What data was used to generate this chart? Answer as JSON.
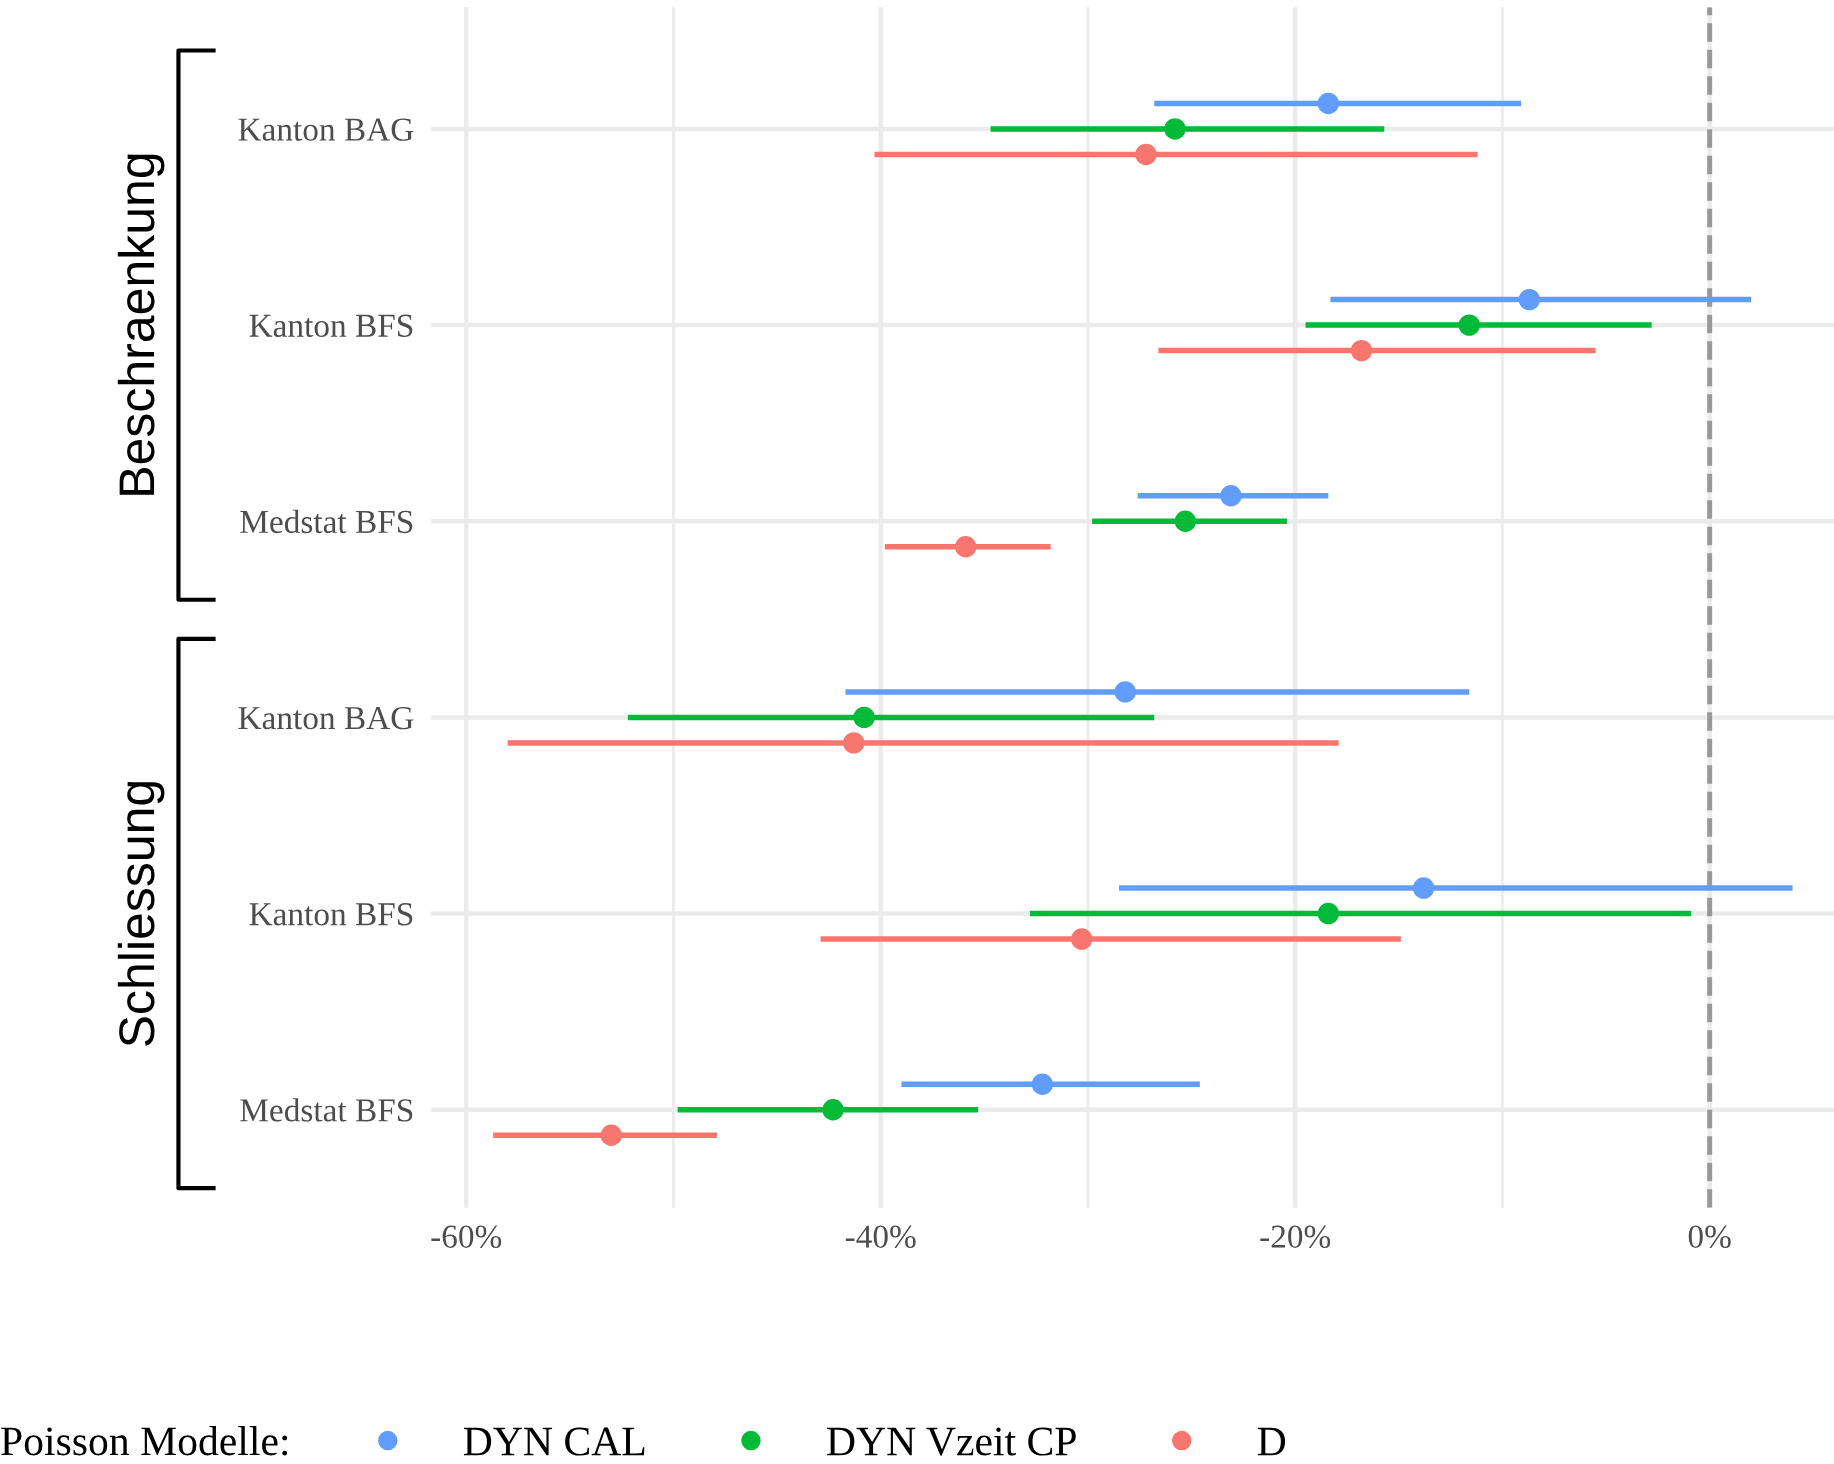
{
  "chart_data": {
    "type": "scatter",
    "orientation": "horizontal",
    "categories": [
      "Kanton BAG",
      "Kanton BFS",
      "Medstat BFS",
      "Kanton BAG",
      "Kanton BFS",
      "Medstat BFS"
    ],
    "series": [
      {
        "name": "DYN CAL",
        "color": "#619cff",
        "values": [
          -18.4,
          -8.7,
          -23.1,
          -28.2,
          -13.8,
          -32.2
        ],
        "errors": [
          [
            -26.8,
            -9.1
          ],
          [
            -18.3,
            2.0
          ],
          [
            -27.6,
            -18.4
          ],
          [
            -41.7,
            -11.6
          ],
          [
            -28.5,
            4.0
          ],
          [
            -39.0,
            -24.6
          ]
        ]
      },
      {
        "name": "DYN Vzeit CP",
        "color": "#00ba38",
        "values": [
          -25.8,
          -11.6,
          -25.3,
          -40.8,
          -18.4,
          -42.3
        ],
        "errors": [
          [
            -34.7,
            -15.7
          ],
          [
            -19.5,
            -2.8
          ],
          [
            -29.8,
            -20.4
          ],
          [
            -52.2,
            -26.8
          ],
          [
            -32.8,
            -0.9
          ],
          [
            -49.8,
            -35.3
          ]
        ]
      },
      {
        "name": "D",
        "color": "#f8766d",
        "values": [
          -27.2,
          -16.8,
          -35.9,
          -41.3,
          -30.3,
          -53.0
        ],
        "errors": [
          [
            -40.3,
            -11.2
          ],
          [
            -26.6,
            -5.5
          ],
          [
            -39.8,
            -31.8
          ],
          [
            -58.0,
            -17.9
          ],
          [
            -42.9,
            -14.9
          ],
          [
            -58.7,
            -47.9
          ]
        ]
      }
    ],
    "xlim": [
      -61.7,
      6
    ],
    "xticks": [
      {
        "value": -60,
        "label": "-60%"
      },
      {
        "value": -50,
        "label": null
      },
      {
        "value": -40,
        "label": "-40%"
      },
      {
        "value": -30,
        "label": null
      },
      {
        "value": -20,
        "label": "-20%"
      },
      {
        "value": -10,
        "label": null
      },
      {
        "value": 0,
        "label": "0%"
      }
    ],
    "ref_lines": [
      {
        "axis": "x",
        "value": 0,
        "color": "#999999",
        "line_style": "dashed"
      }
    ],
    "annotations": [
      "Beschraenkung",
      "Schliessung"
    ],
    "legend_title": "Poisson Modelle:",
    "legend": "bottom",
    "grid": true,
    "marker": "circle"
  }
}
